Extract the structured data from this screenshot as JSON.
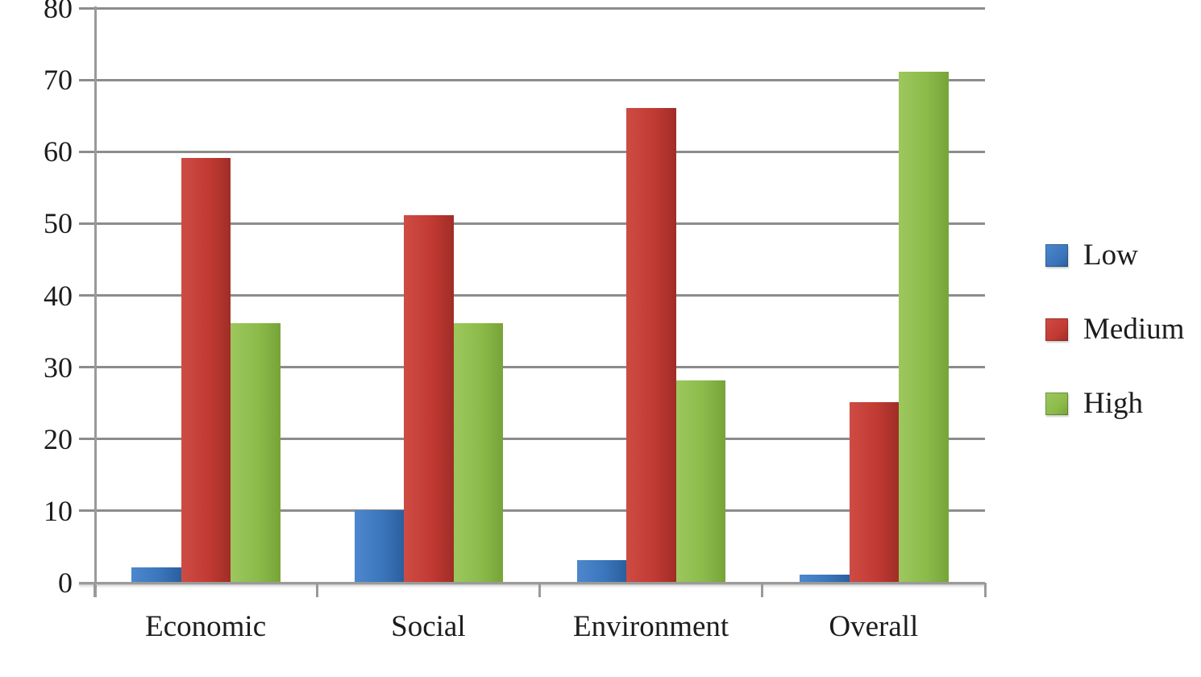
{
  "chart_data": {
    "type": "bar",
    "title": "",
    "xlabel": "",
    "ylabel": "",
    "categories": [
      "Economic",
      "Social",
      "Environment",
      "Overall"
    ],
    "series": [
      {
        "name": "Low",
        "values": [
          2,
          10,
          3,
          1
        ],
        "color": "#3b76bc",
        "color_light": "#4d87cd",
        "color_dark": "#2b5f9e"
      },
      {
        "name": "Medium",
        "values": [
          59,
          51,
          66,
          25
        ],
        "color": "#c23a33",
        "color_light": "#cd4c44",
        "color_dark": "#a02d27"
      },
      {
        "name": "High",
        "values": [
          36,
          36,
          28,
          71
        ],
        "color": "#8cbb4a",
        "color_light": "#9cc75e",
        "color_dark": "#77a338"
      }
    ],
    "ylim": [
      0,
      80
    ],
    "yticks": [
      0,
      10,
      20,
      30,
      40,
      50,
      60,
      70,
      80
    ],
    "grid": true,
    "legend_position": "right"
  },
  "colors": {
    "gridline": "#8c8c8c",
    "axis": "#9a9a9a",
    "text": "#1c1c1c",
    "background": "#ffffff"
  }
}
